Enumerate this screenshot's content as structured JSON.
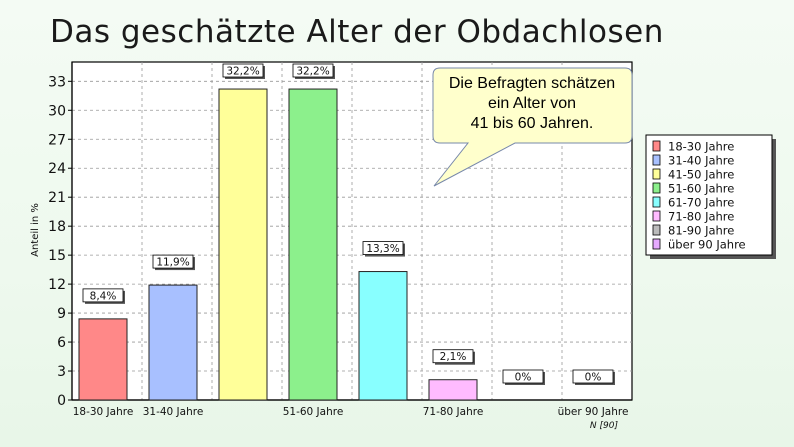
{
  "page": {
    "title": "Das geschätzte Alter der Obdachlosen"
  },
  "chart_data": {
    "type": "bar",
    "title": "Das geschätzte Alter der Obdachlosen",
    "ylabel": "Anteil in %",
    "xlabel": "",
    "ylim": [
      0,
      35
    ],
    "yticks": [
      0,
      3,
      6,
      9,
      12,
      15,
      18,
      21,
      24,
      27,
      30,
      33
    ],
    "grid": true,
    "categories": [
      "18-30 Jahre",
      "31-40 Jahre",
      "41-50 Jahre",
      "51-60 Jahre",
      "61-70 Jahre",
      "71-80 Jahre",
      "81-90 Jahre",
      "über 90 Jahre"
    ],
    "x_tick_labels": [
      "18-30 Jahre",
      "31-40 Jahre",
      "",
      "51-60 Jahre",
      "",
      "71-80 Jahre",
      "",
      "über 90 Jahre"
    ],
    "values": [
      8.4,
      11.9,
      32.2,
      32.2,
      13.3,
      2.1,
      0,
      0
    ],
    "data_labels": [
      "8,4%",
      "11,9%",
      "32,2%",
      "32,2%",
      "13,3%",
      "2,1%",
      "0%",
      "0%"
    ],
    "colors": [
      "#ff8888",
      "#a8c0ff",
      "#ffff99",
      "#8cf08c",
      "#88ffff",
      "#ffbbff",
      "#bbbbbb",
      "#e6aaff"
    ],
    "legend": {
      "placement": "right",
      "entries": [
        "18-30 Jahre",
        "31-40 Jahre",
        "41-50 Jahre",
        "51-60 Jahre",
        "61-70 Jahre",
        "71-80 Jahre",
        "81-90  Jahre",
        "über 90 Jahre"
      ]
    },
    "sample_note": "N [90]",
    "annotation": {
      "lines": [
        "Die Befragten schätzen",
        "ein Alter von",
        "41 bis 60 Jahren."
      ],
      "fill": "#ffffcc"
    }
  }
}
